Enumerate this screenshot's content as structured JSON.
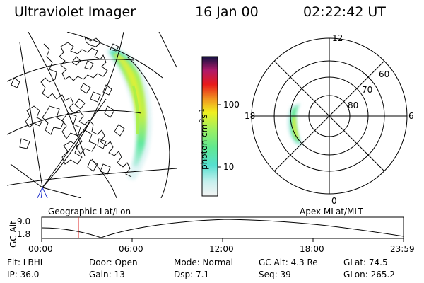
{
  "header": {
    "instrument": "Ultraviolet Imager",
    "date": "16 Jan 00",
    "time": "02:22:42 UT"
  },
  "colorbar": {
    "label": "photon cm",
    "label_sup1": "-2",
    "label_mid": "s",
    "label_sup2": "-1",
    "ticks": [
      "100",
      "10"
    ],
    "scale": "log",
    "colors": [
      "#f4f4f4",
      "#55e0d0",
      "#9ff060",
      "#f0f020",
      "#f09020",
      "#e81a1a",
      "#b01a6a",
      "#101040"
    ]
  },
  "map_left": {
    "label": "Geographic Lat/Lon"
  },
  "map_right": {
    "label": "Apex MLat/MLT",
    "mlt_labels": [
      "12",
      "18",
      "6",
      "0"
    ],
    "mlat_labels": [
      "60",
      "70",
      "80"
    ]
  },
  "altitude_plot": {
    "ylabel": "GC Alt",
    "y_ticks": [
      "9.0",
      "1.8"
    ],
    "x_ticks": [
      "00:00",
      "06:00",
      "12:00",
      "18:00",
      "23:59"
    ],
    "current_time_marker": "02:22",
    "marker_color": "#dd2222"
  },
  "footer": {
    "flt": "Flt: LBHL",
    "ip": "IP: 36.0",
    "door": "Door: Open",
    "gain": "Gain: 13",
    "mode": "Mode: Normal",
    "dsp": "Dsp:    7.1",
    "gcalt": "GC Alt: 4.3 Re",
    "seq": "Seq: 39",
    "glat": "GLat:   74.5",
    "glon": "GLon: 265.2"
  }
}
